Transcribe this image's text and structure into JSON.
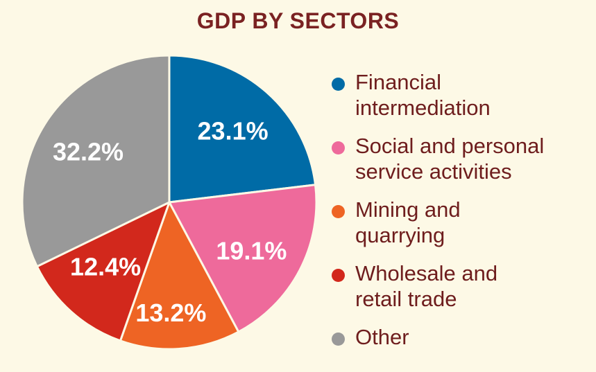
{
  "chart_data": {
    "type": "pie",
    "title": "GDP BY SECTORS",
    "slices": [
      {
        "name": "Financial intermediation",
        "legend": "Financial\nintermediation",
        "value": 23.1,
        "label": "23.1%",
        "color": "#006ba6"
      },
      {
        "name": "Social and personal service activities",
        "legend": "Social and personal\nservice activities",
        "value": 19.1,
        "label": "19.1%",
        "color": "#ee6a9b"
      },
      {
        "name": "Mining and quarrying",
        "legend": "Mining and\nquarrying",
        "value": 13.2,
        "label": "13.2%",
        "color": "#ee6424"
      },
      {
        "name": "Wholesale and retail trade",
        "legend": "Wholesale and\nretail trade",
        "value": 12.4,
        "label": "12.4%",
        "color": "#d2281c"
      },
      {
        "name": "Other",
        "legend": "Other",
        "value": 32.2,
        "label": "32.2%",
        "color": "#999999"
      }
    ],
    "start": "12 o'clock",
    "direction": "clockwise",
    "legend_position": "right"
  },
  "colors": {
    "background": "#fdf9e6",
    "title": "#7a2222",
    "legend_text": "#6e1d1d",
    "slice_border": "#fdf9e6"
  }
}
